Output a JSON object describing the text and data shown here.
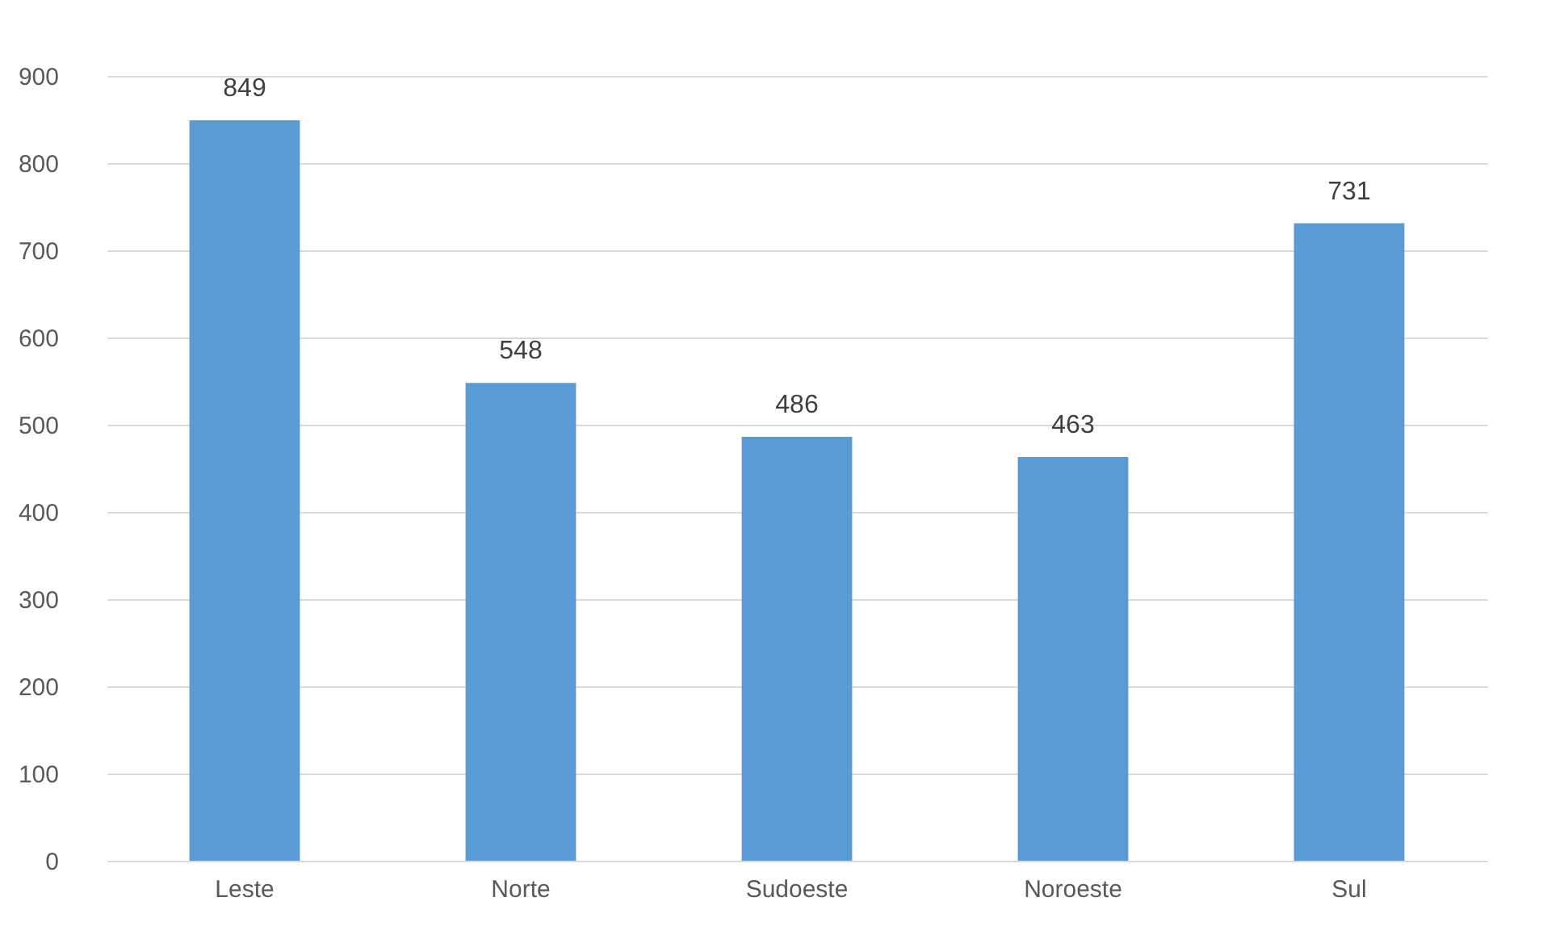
{
  "chart_data": {
    "type": "bar",
    "categories": [
      "Leste",
      "Norte",
      "Sudoeste",
      "Noroeste",
      "Sul"
    ],
    "values": [
      849,
      548,
      486,
      463,
      731
    ],
    "color": "#5b9bd5",
    "ylim": [
      0,
      900
    ],
    "yticks": [
      0,
      100,
      200,
      300,
      400,
      500,
      600,
      700,
      800,
      900
    ],
    "grid": "y",
    "data_labels": true
  }
}
